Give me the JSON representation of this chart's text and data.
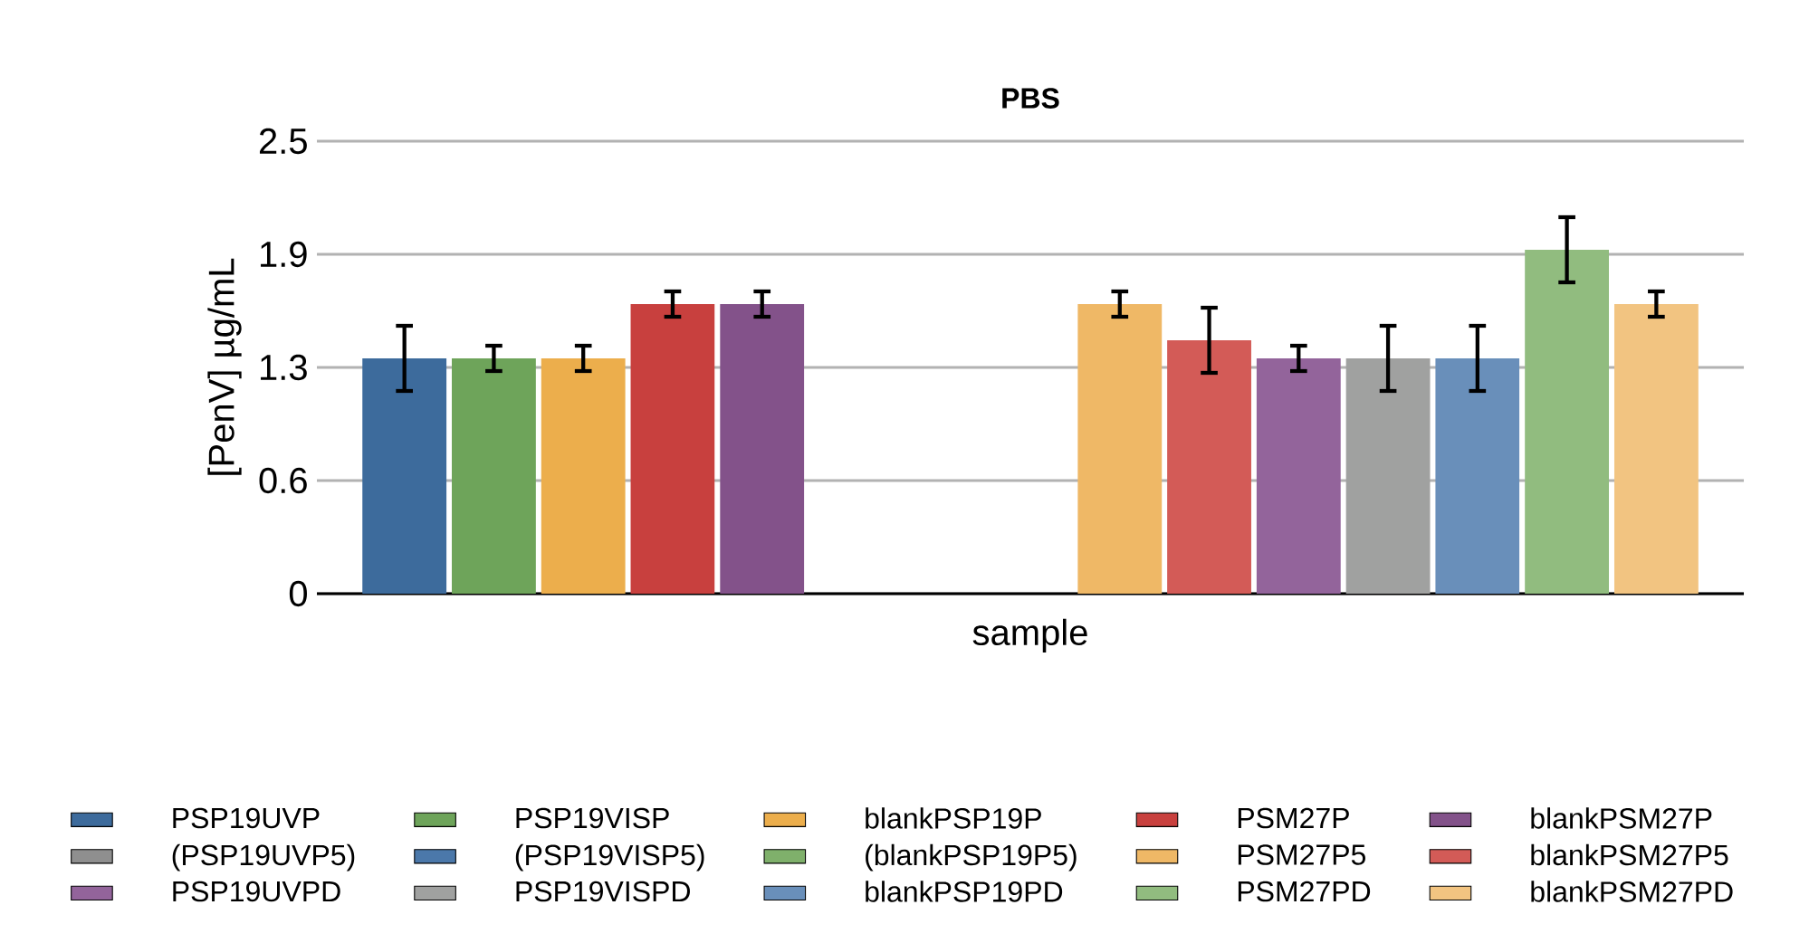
{
  "chart_data": {
    "type": "bar",
    "title": "PBS",
    "xlabel": "sample",
    "ylabel": "[PenV] µg/mL",
    "categories": [
      null
    ],
    "ylim": [
      0,
      2.5
    ],
    "yticks": [
      0,
      {
        "value": 0.625,
        "label": "0.6"
      },
      {
        "value": 1.25,
        "label": "1.3"
      },
      {
        "value": 1.875,
        "label": "1.9"
      },
      2.5
    ],
    "grid": "y",
    "legend": "bottom",
    "series": [
      {
        "name": "PSP19UVP",
        "color": "#3d6b9c",
        "values": [
          1.3
        ],
        "errors": [
          0.18
        ]
      },
      {
        "name": "PSP19VISP",
        "color": "#6ea45a",
        "values": [
          1.3
        ],
        "errors": [
          0.07
        ]
      },
      {
        "name": "blankPSP19P",
        "color": "#ecae4c",
        "values": [
          1.3
        ],
        "errors": [
          0.07
        ]
      },
      {
        "name": "PSM27P",
        "color": "#c8403e",
        "values": [
          1.6
        ],
        "errors": [
          0.07
        ]
      },
      {
        "name": "blankPSM27P",
        "color": "#83528a",
        "values": [
          1.6
        ],
        "errors": [
          0.07
        ]
      },
      {
        "name": "(PSP19UVP5)",
        "color": "#8f8f8f",
        "values": [
          null
        ],
        "errors": [
          null
        ]
      },
      {
        "name": "(PSP19VISP5)",
        "color": "#4b78aa",
        "values": [
          null
        ],
        "errors": [
          null
        ]
      },
      {
        "name": "(blankPSP19P5)",
        "color": "#7fb06b",
        "values": [
          null
        ],
        "errors": [
          null
        ]
      },
      {
        "name": "PSM27P5",
        "color": "#efb866",
        "values": [
          1.6
        ],
        "errors": [
          0.07
        ]
      },
      {
        "name": "blankPSM27P5",
        "color": "#d35b57",
        "values": [
          1.4
        ],
        "errors": [
          0.18
        ]
      },
      {
        "name": "PSP19UVPD",
        "color": "#93649b",
        "values": [
          1.3
        ],
        "errors": [
          0.07
        ]
      },
      {
        "name": "PSP19VISPD",
        "color": "#a0a1a0",
        "values": [
          1.3
        ],
        "errors": [
          0.18
        ]
      },
      {
        "name": "blankPSP19PD",
        "color": "#698fba",
        "values": [
          1.3
        ],
        "errors": [
          0.18
        ]
      },
      {
        "name": "PSM27PD",
        "color": "#91bc7f",
        "values": [
          1.9
        ],
        "errors": [
          0.18
        ]
      },
      {
        "name": "blankPSM27PD",
        "color": "#f2c481",
        "values": [
          1.6
        ],
        "errors": [
          0.07
        ]
      }
    ]
  }
}
